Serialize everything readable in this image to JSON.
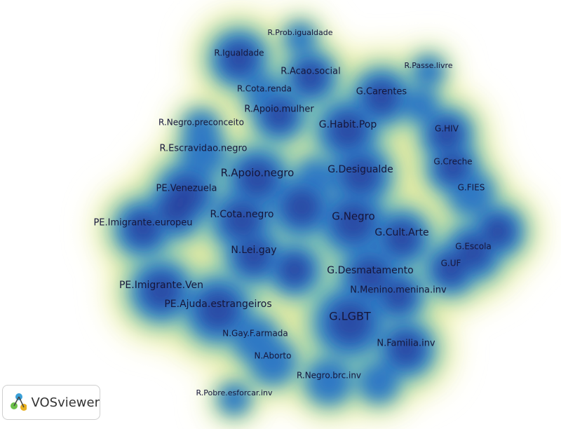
{
  "nodes": [
    {
      "label": "R.Prob.igualdade"
    },
    {
      "label": "R.Igualdade"
    },
    {
      "label": "R.Acao.social"
    },
    {
      "label": "R.Passe.livre"
    },
    {
      "label": "R.Cota.renda"
    },
    {
      "label": "G.Carentes"
    },
    {
      "label": "R.Apoio.mulher"
    },
    {
      "label": "R.Negro.preconceito"
    },
    {
      "label": "G.Habit.Pop"
    },
    {
      "label": "G.HIV"
    },
    {
      "label": "R.Escravidao.negro"
    },
    {
      "label": "G.Creche"
    },
    {
      "label": "R.Apoio.negro"
    },
    {
      "label": "G.Desigualde"
    },
    {
      "label": "PE.Venezuela"
    },
    {
      "label": "G.FIES"
    },
    {
      "label": "R.Cota.negro"
    },
    {
      "label": "G.Negro"
    },
    {
      "label": "PE.Imigrante.europeu"
    },
    {
      "label": "G.Cult.Arte"
    },
    {
      "label": "N.Lei.gay"
    },
    {
      "label": "G.Escola"
    },
    {
      "label": "G.UF"
    },
    {
      "label": "G.Desmatamento"
    },
    {
      "label": "PE.Imigrante.Ven"
    },
    {
      "label": "N.Menino.menina.inv"
    },
    {
      "label": "PE.Ajuda.estrangeiros"
    },
    {
      "label": "G.LGBT"
    },
    {
      "label": "N.Gay.F.armada"
    },
    {
      "label": "N.Familia.inv"
    },
    {
      "label": "N.Aborto"
    },
    {
      "label": "R.Negro.brc.inv"
    },
    {
      "label": "R.Pobre.esforcar.inv"
    }
  ],
  "logo": {
    "text": "VOSviewer"
  }
}
